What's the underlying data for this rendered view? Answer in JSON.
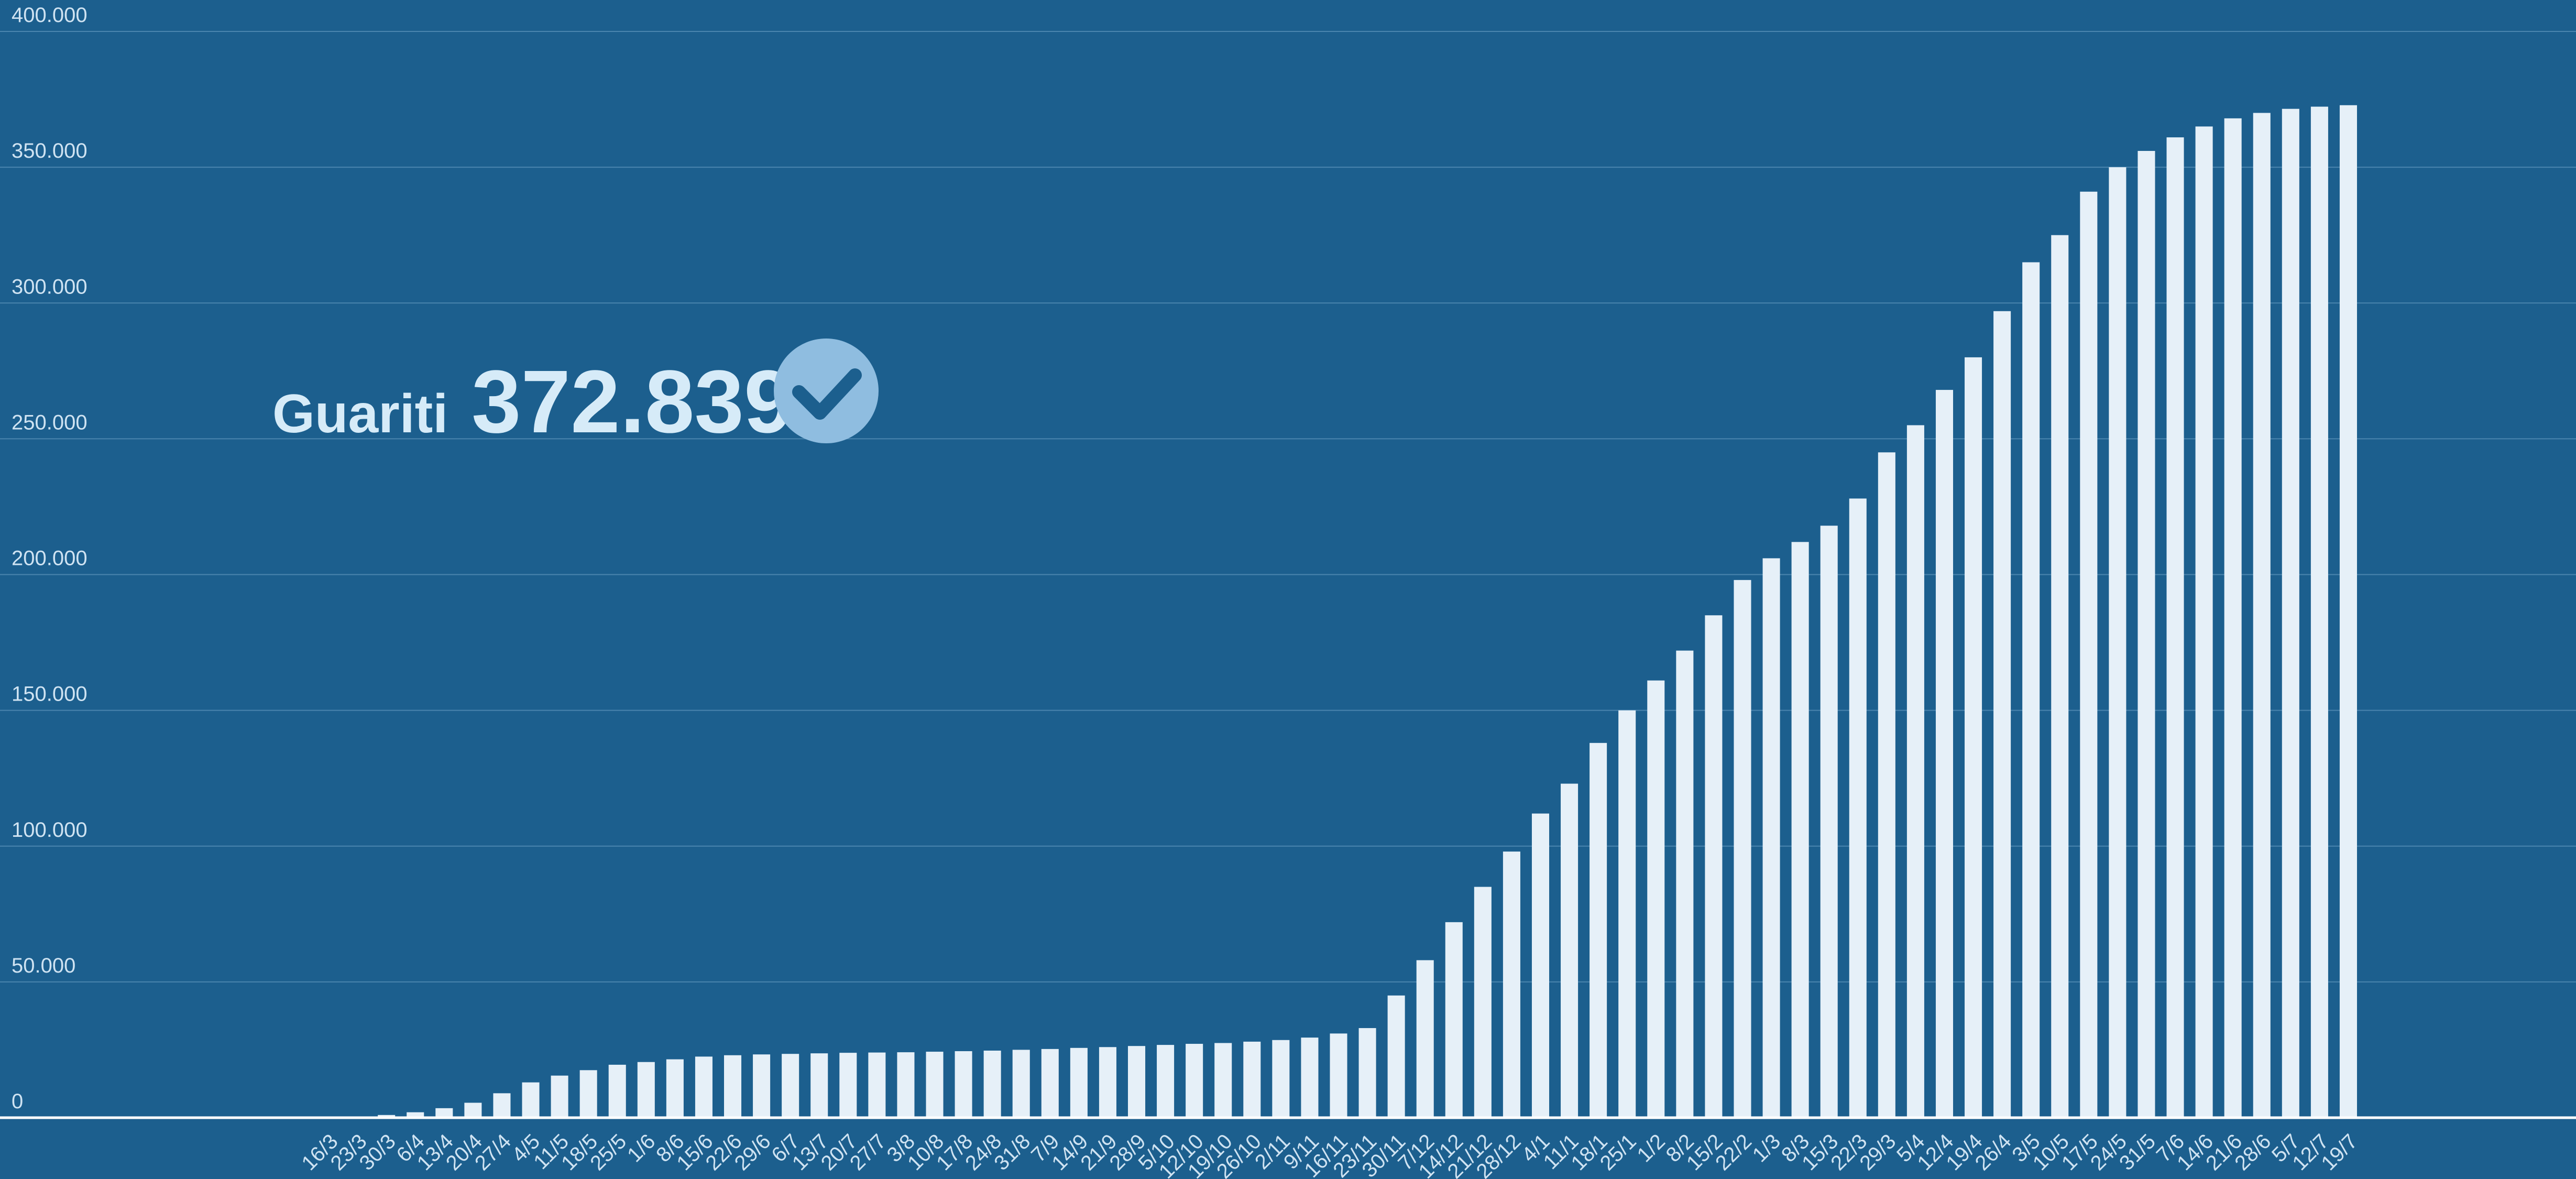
{
  "chart_data": {
    "type": "bar",
    "title": "Guariti",
    "annotation": "372.839",
    "color": "#e6f0f8",
    "grid": true,
    "categories": [
      "16/3",
      "23/3",
      "30/3",
      "6/4",
      "13/4",
      "20/4",
      "27/4",
      "4/5",
      "11/5",
      "18/5",
      "25/5",
      "1/6",
      "8/6",
      "15/6",
      "22/6",
      "29/6",
      "6/7",
      "13/7",
      "20/7",
      "27/7",
      "3/8",
      "10/8",
      "17/8",
      "24/8",
      "31/8",
      "7/9",
      "14/9",
      "21/9",
      "28/9",
      "5/10",
      "12/10",
      "19/10",
      "26/10",
      "2/11",
      "9/11",
      "16/11",
      "23/11",
      "30/11",
      "7/12",
      "14/12",
      "21/12",
      "28/12",
      "4/1",
      "11/1",
      "18/1",
      "25/1",
      "1/2",
      "8/2",
      "15/2",
      "22/2",
      "1/3",
      "8/3",
      "15/3",
      "22/3",
      "29/3",
      "5/4",
      "12/4",
      "19/4",
      "26/4",
      "3/5",
      "10/5",
      "17/5",
      "24/5",
      "31/5",
      "7/6",
      "14/6",
      "21/6",
      "28/6",
      "5/7",
      "12/7",
      "19/7"
    ],
    "values": [
      0,
      200,
      1000,
      2000,
      3500,
      5500,
      9000,
      13000,
      15500,
      17500,
      19500,
      20500,
      21500,
      22500,
      23000,
      23300,
      23500,
      23700,
      23900,
      24000,
      24100,
      24300,
      24500,
      24700,
      25000,
      25300,
      25700,
      26000,
      26400,
      26800,
      27200,
      27500,
      28000,
      28600,
      29500,
      31000,
      33000,
      45000,
      58000,
      72000,
      85000,
      98000,
      112000,
      123000,
      138000,
      150000,
      161000,
      172000,
      185000,
      198000,
      206000,
      212000,
      218000,
      228000,
      245000,
      255000,
      268000,
      280000,
      297000,
      315000,
      325000,
      341000,
      350000,
      356000,
      361000,
      365000,
      368000,
      370000,
      371500,
      372300,
      372839
    ],
    "ylim": [
      0,
      400000
    ],
    "yticks": [
      0,
      {
        "value": 50000,
        "label": "50.000"
      },
      {
        "value": 100000,
        "label": "100.000"
      },
      {
        "value": 150000,
        "label": "150.000"
      },
      {
        "value": 200000,
        "label": "200.000"
      },
      {
        "value": 250000,
        "label": "250.000"
      },
      {
        "value": 300000,
        "label": "300.000"
      },
      {
        "value": 350000,
        "label": "350.000"
      },
      {
        "value": 400000,
        "label": "400.000"
      }
    ]
  }
}
